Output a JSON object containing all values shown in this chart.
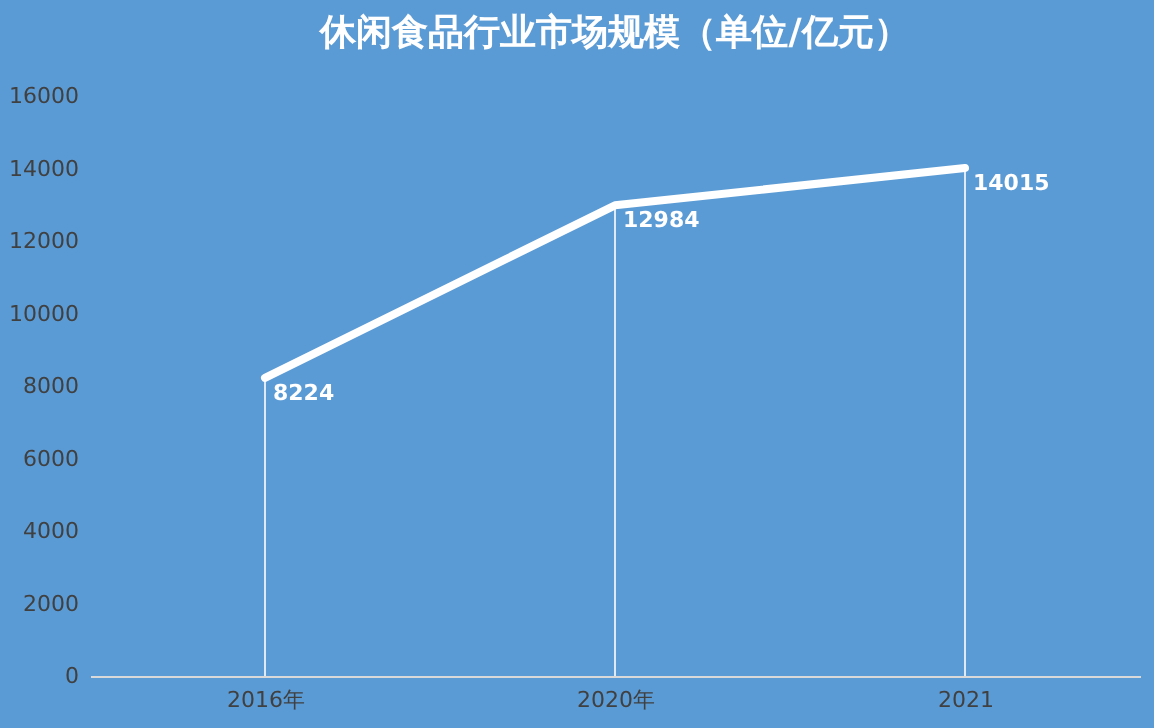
{
  "chart_data": {
    "type": "line",
    "title": "休闲食品行业市场规模（单位/亿元）",
    "categories": [
      "2016年",
      "2020年",
      "2021"
    ],
    "series": [
      {
        "color": "#ffffff",
        "values": [
          8224,
          12984,
          14015
        ]
      }
    ],
    "ylim": [
      0,
      16000
    ],
    "yticks": [
      0,
      2000,
      4000,
      6000,
      8000,
      10000,
      12000,
      14000,
      16000
    ],
    "grid": "x",
    "marker": "none",
    "line_style": "solid",
    "data_labels": true
  }
}
